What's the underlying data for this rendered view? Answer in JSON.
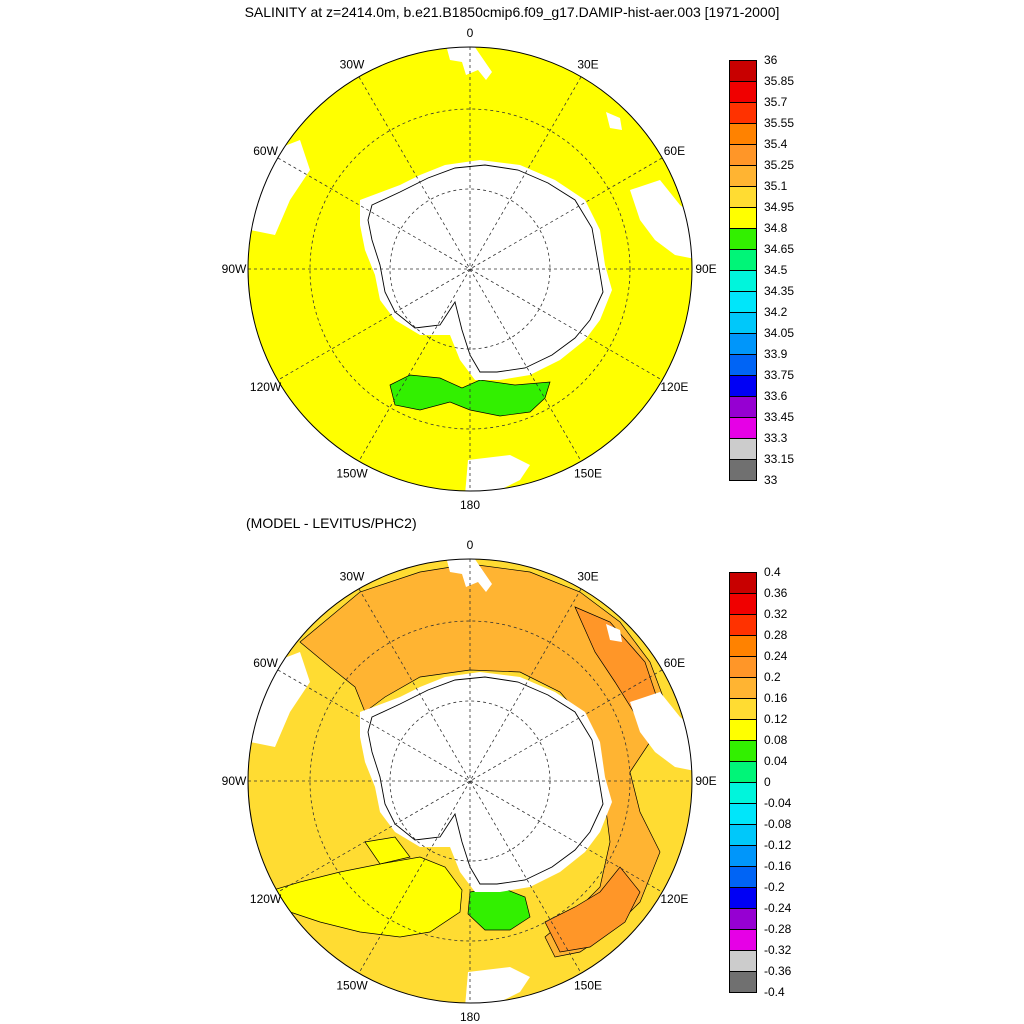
{
  "titles": {
    "main": "SALINITY at z=2414.0m, b.e21.B1850cmip6.f09_g17.DAMIP-hist-aer.003 [1971-2000]",
    "difference": "(MODEL - LEVITUS/PHC2)"
  },
  "longitude_labels": [
    "0",
    "30E",
    "60E",
    "90E",
    "120E",
    "150E",
    "180",
    "150W",
    "120W",
    "90W",
    "60W",
    "30W"
  ],
  "colors": {
    "palette": [
      "#707070",
      "#cccccc",
      "#e600e6",
      "#9600d2",
      "#0000f5",
      "#0064f5",
      "#0096fa",
      "#00c8fa",
      "#00e6fa",
      "#00f5dc",
      "#00f578",
      "#32f000",
      "#ffff00",
      "#ffdc32",
      "#ffb432",
      "#ff9628",
      "#ff8200",
      "#ff3200",
      "#f00000",
      "#c80000"
    ],
    "land": "#ffffff",
    "outline": "#000000"
  },
  "panels": [
    {
      "name": "salinity",
      "colorbar_labels": [
        "36",
        "35.85",
        "35.7",
        "35.55",
        "35.4",
        "35.25",
        "35.1",
        "34.95",
        "34.8",
        "34.65",
        "34.5",
        "34.35",
        "34.2",
        "34.05",
        "33.9",
        "33.75",
        "33.6",
        "33.45",
        "33.3",
        "33.15",
        "33"
      ]
    },
    {
      "name": "difference",
      "colorbar_labels": [
        "0.4",
        "0.36",
        "0.32",
        "0.28",
        "0.24",
        "0.2",
        "0.16",
        "0.12",
        "0.08",
        "0.04",
        "0",
        "-0.04",
        "-0.08",
        "-0.12",
        "-0.16",
        "-0.2",
        "-0.24",
        "-0.28",
        "-0.32",
        "-0.36",
        "-0.4"
      ]
    }
  ]
}
